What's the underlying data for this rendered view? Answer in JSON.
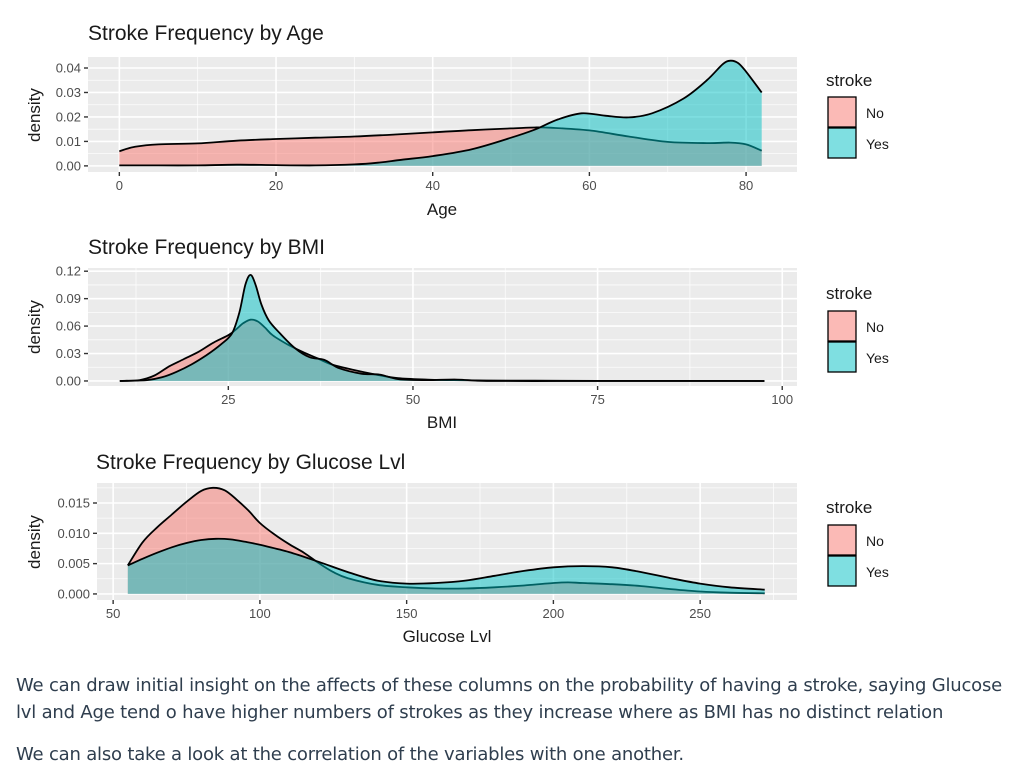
{
  "legend": {
    "title": "stroke",
    "entries": [
      {
        "label": "No",
        "color": "#F8766D"
      },
      {
        "label": "Yes",
        "color": "#00BFC4"
      }
    ]
  },
  "chart_data": [
    {
      "type": "area",
      "subtype": "density",
      "title": "Stroke Frequency by Age",
      "xlabel": "Age",
      "ylabel": "density",
      "xlim": [
        -4,
        86.5
      ],
      "ylim": [
        -0.0025,
        0.0445
      ],
      "xticks": [
        0,
        20,
        40,
        60,
        80
      ],
      "xtick_labels": [
        "0",
        "20",
        "40",
        "60",
        "80"
      ],
      "yticks": [
        0,
        0.01,
        0.02,
        0.03,
        0.04
      ],
      "ytick_labels": [
        "0.00",
        "0.01",
        "0.02",
        "0.03",
        "0.04"
      ],
      "grid": true,
      "legend_position": "right",
      "series": [
        {
          "name": "No",
          "x": [
            0,
            2,
            5,
            10,
            15,
            20,
            25,
            30,
            35,
            40,
            45,
            50,
            53,
            55,
            60,
            65,
            70,
            75,
            78,
            80,
            82
          ],
          "y": [
            0.006,
            0.0078,
            0.0088,
            0.0092,
            0.0103,
            0.011,
            0.0115,
            0.012,
            0.0128,
            0.0137,
            0.0146,
            0.0153,
            0.0157,
            0.0156,
            0.0145,
            0.012,
            0.0098,
            0.0093,
            0.0095,
            0.0088,
            0.0062
          ]
        },
        {
          "name": "Yes",
          "x": [
            0,
            5,
            10,
            15,
            20,
            25,
            30,
            33,
            36,
            40,
            45,
            50,
            53,
            56,
            59,
            62,
            65,
            68,
            72,
            75,
            77,
            78,
            79,
            80,
            82
          ],
          "y": [
            0.0002,
            0.0002,
            0.0002,
            0.0005,
            0.0003,
            0.0002,
            0.0006,
            0.0013,
            0.0025,
            0.004,
            0.0068,
            0.0115,
            0.0148,
            0.019,
            0.0215,
            0.0205,
            0.0198,
            0.0215,
            0.0275,
            0.035,
            0.0415,
            0.043,
            0.042,
            0.0385,
            0.03
          ]
        }
      ]
    },
    {
      "type": "area",
      "subtype": "density",
      "title": "Stroke Frequency by BMI",
      "xlabel": "BMI",
      "ylabel": "density",
      "xlim": [
        6,
        102
      ],
      "ylim": [
        -0.0055,
        0.1235
      ],
      "xticks": [
        25,
        50,
        75,
        100
      ],
      "xtick_labels": [
        "25",
        "50",
        "75",
        "100"
      ],
      "yticks": [
        0,
        0.03,
        0.06,
        0.09,
        0.12
      ],
      "ytick_labels": [
        "0.00",
        "0.03",
        "0.06",
        "0.09",
        "0.12"
      ],
      "grid": true,
      "legend_position": "right",
      "series": [
        {
          "name": "No",
          "x": [
            10.3,
            13,
            15,
            17,
            19,
            21,
            23,
            25,
            26,
            27,
            28,
            29,
            30,
            31,
            33,
            35,
            37,
            39,
            42,
            45,
            48,
            52,
            55,
            60,
            70,
            80,
            90,
            97.6
          ],
          "y": [
            0,
            0.001,
            0.006,
            0.016,
            0.024,
            0.032,
            0.042,
            0.05,
            0.056,
            0.063,
            0.067,
            0.065,
            0.058,
            0.05,
            0.04,
            0.032,
            0.025,
            0.018,
            0.012,
            0.007,
            0.003,
            0.0015,
            0.001,
            0.0005,
            0.0002,
            0.0001,
            0.0001,
            0
          ]
        },
        {
          "name": "Yes",
          "x": [
            10.3,
            14,
            16,
            18,
            20,
            22,
            24,
            25.5,
            26.5,
            27.3,
            28,
            28.7,
            29.5,
            30.5,
            32,
            34,
            36,
            38,
            40,
            43,
            45.5,
            48,
            52,
            56,
            60,
            70,
            80,
            90,
            97.6
          ],
          "y": [
            0,
            0.001,
            0.004,
            0.01,
            0.018,
            0.028,
            0.04,
            0.052,
            0.075,
            0.105,
            0.116,
            0.105,
            0.083,
            0.066,
            0.052,
            0.036,
            0.026,
            0.023,
            0.014,
            0.008,
            0.007,
            0.002,
            0.001,
            0.0015,
            0,
            0,
            0,
            0,
            0
          ]
        }
      ]
    },
    {
      "type": "area",
      "subtype": "density",
      "title": "Stroke Frequency by Glucose Lvl",
      "xlabel": "Glucose Lvl",
      "ylabel": "density",
      "xlim": [
        44.5,
        283
      ],
      "ylim": [
        -0.001,
        0.0183
      ],
      "xticks": [
        50,
        100,
        150,
        200,
        250
      ],
      "xtick_labels": [
        "50",
        "100",
        "150",
        "200",
        "250"
      ],
      "yticks": [
        0,
        0.005,
        0.01,
        0.015
      ],
      "ytick_labels": [
        "0.000",
        "0.005",
        "0.010",
        "0.015"
      ],
      "grid": true,
      "legend_position": "right",
      "series": [
        {
          "name": "No",
          "x": [
            55,
            60,
            65,
            70,
            75,
            80,
            84,
            88,
            92,
            96,
            100,
            105,
            110,
            115,
            120,
            125,
            130,
            140,
            150,
            160,
            170,
            180,
            190,
            200,
            205,
            210,
            220,
            230,
            240,
            250,
            260,
            272
          ],
          "y": [
            0.0047,
            0.0085,
            0.011,
            0.0131,
            0.0152,
            0.017,
            0.0175,
            0.0171,
            0.0156,
            0.0138,
            0.0117,
            0.0098,
            0.0082,
            0.0068,
            0.0051,
            0.0036,
            0.0026,
            0.0015,
            0.0011,
            0.0009,
            0.0009,
            0.0011,
            0.0014,
            0.0018,
            0.0019,
            0.0018,
            0.0016,
            0.0013,
            0.0008,
            0.0004,
            0.0002,
            0.0001
          ]
        },
        {
          "name": "Yes",
          "x": [
            55,
            60,
            65,
            70,
            75,
            80,
            85,
            90,
            95,
            100,
            110,
            120,
            130,
            140,
            150,
            160,
            170,
            180,
            190,
            200,
            210,
            220,
            230,
            240,
            250,
            260,
            272
          ],
          "y": [
            0.0047,
            0.0058,
            0.0068,
            0.0077,
            0.0084,
            0.0089,
            0.0091,
            0.009,
            0.0086,
            0.0081,
            0.0069,
            0.0053,
            0.0036,
            0.0022,
            0.0017,
            0.0018,
            0.0022,
            0.003,
            0.0038,
            0.0044,
            0.0046,
            0.0044,
            0.0036,
            0.0026,
            0.0017,
            0.0011,
            0.0007
          ]
        }
      ]
    }
  ],
  "prose": {
    "paragraph_1": "We can draw initial insight on the affects of these columns on the probability of having a stroke, saying Glucose lvl and Age tend o have higher numbers of strokes as they increase where as BMI has no distinct relation",
    "paragraph_2": "We can also take a look at the correlation of the variables with one another."
  }
}
